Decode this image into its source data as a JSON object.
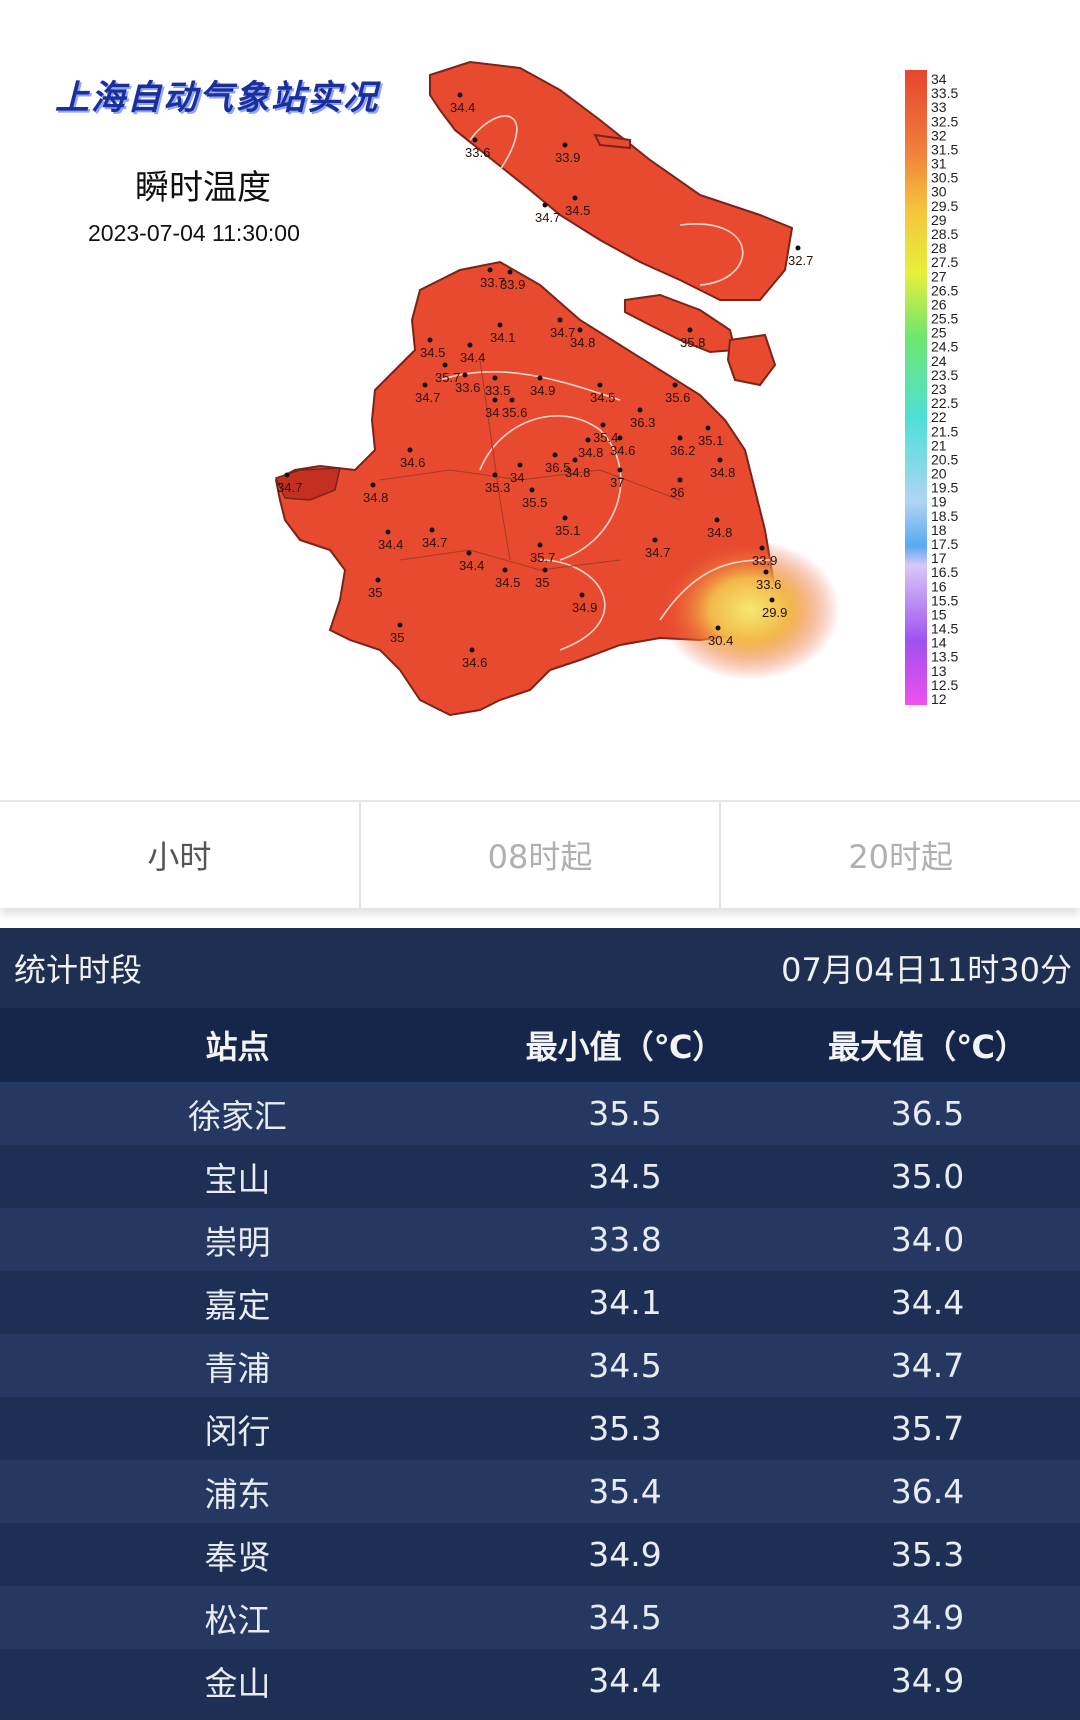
{
  "map": {
    "title": "上海自动气象站实况",
    "subtitle": "瞬时温度",
    "timestamp": "2023-07-04 11:30:00",
    "legend_ticks": [
      "34",
      "33.5",
      "33",
      "32.5",
      "32",
      "31.5",
      "31",
      "30.5",
      "30",
      "29.5",
      "29",
      "28.5",
      "28",
      "27.5",
      "27",
      "26.5",
      "26",
      "25.5",
      "25",
      "24.5",
      "24",
      "23.5",
      "23",
      "22.5",
      "22",
      "21.5",
      "21",
      "20.5",
      "20",
      "19.5",
      "19",
      "18.5",
      "18",
      "17.5",
      "17",
      "16.5",
      "16",
      "15.5",
      "15",
      "14.5",
      "14",
      "13.5",
      "13",
      "12.5",
      "12"
    ],
    "stations": [
      {
        "v": "34.4"
      },
      {
        "v": "33.6"
      },
      {
        "v": "33.9"
      },
      {
        "v": "34.7"
      },
      {
        "v": "34.5"
      },
      {
        "v": "32.7"
      },
      {
        "v": "33.7"
      },
      {
        "v": "33.9"
      },
      {
        "v": "34.1"
      },
      {
        "v": "34.7"
      },
      {
        "v": "34.8"
      },
      {
        "v": "35.8"
      },
      {
        "v": "34.5"
      },
      {
        "v": "34.4"
      },
      {
        "v": "35.7"
      },
      {
        "v": "33.6"
      },
      {
        "v": "33.5"
      },
      {
        "v": "34.9"
      },
      {
        "v": "34.7"
      },
      {
        "v": "34"
      },
      {
        "v": "35.6"
      },
      {
        "v": "34.5"
      },
      {
        "v": "35.6"
      },
      {
        "v": "36.3"
      },
      {
        "v": "35.4"
      },
      {
        "v": "35.1"
      },
      {
        "v": "34.6"
      },
      {
        "v": "34.8"
      },
      {
        "v": "34.6"
      },
      {
        "v": "36.2"
      },
      {
        "v": "36.5"
      },
      {
        "v": "34"
      },
      {
        "v": "34.8"
      },
      {
        "v": "34.8"
      },
      {
        "v": "34.7"
      },
      {
        "v": "35.3"
      },
      {
        "v": "37"
      },
      {
        "v": "36"
      },
      {
        "v": "34.8"
      },
      {
        "v": "35.5"
      },
      {
        "v": "35.1"
      },
      {
        "v": "34.8"
      },
      {
        "v": "34.4"
      },
      {
        "v": "34.7"
      },
      {
        "v": "34.7"
      },
      {
        "v": "33.9"
      },
      {
        "v": "35.7"
      },
      {
        "v": "34.4"
      },
      {
        "v": "33.6"
      },
      {
        "v": "34.5"
      },
      {
        "v": "35"
      },
      {
        "v": "35"
      },
      {
        "v": "34.9"
      },
      {
        "v": "29.9"
      },
      {
        "v": "35"
      },
      {
        "v": "30.4"
      },
      {
        "v": "34.6"
      }
    ]
  },
  "tabs": [
    "小时",
    "08时起",
    "20时起"
  ],
  "stats": {
    "period_label": "统计时段",
    "period_value": "07月04日11时30分",
    "columns": [
      "站点",
      "最小值（℃）",
      "最大值（℃）"
    ],
    "rows": [
      [
        "徐家汇",
        "35.5",
        "36.5"
      ],
      [
        "宝山",
        "34.5",
        "35.0"
      ],
      [
        "崇明",
        "33.8",
        "34.0"
      ],
      [
        "嘉定",
        "34.1",
        "34.4"
      ],
      [
        "青浦",
        "34.5",
        "34.7"
      ],
      [
        "闵行",
        "35.3",
        "35.7"
      ],
      [
        "浦东",
        "35.4",
        "36.4"
      ],
      [
        "奉贤",
        "34.9",
        "35.3"
      ],
      [
        "松江",
        "34.5",
        "34.9"
      ],
      [
        "金山",
        "34.4",
        "34.9"
      ]
    ]
  }
}
